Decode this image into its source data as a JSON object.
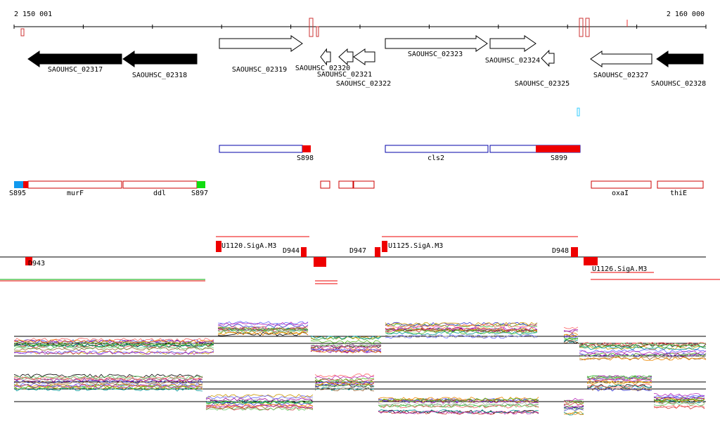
{
  "ruler": {
    "start_label": "2 150 001",
    "end_label": "2 160 000"
  },
  "genes": [
    {
      "label": "SAOUHSC_02317"
    },
    {
      "label": "SAOUHSC_02318"
    },
    {
      "label": "SAOUHSC_02319"
    },
    {
      "label": "SAOUHSC_02320"
    },
    {
      "label": "SAOUHSC_02321"
    },
    {
      "label": "SAOUHSC_02322"
    },
    {
      "label": "SAOUHSC_02323"
    },
    {
      "label": "SAOUHSC_02324"
    },
    {
      "label": "SAOUHSC_02325"
    },
    {
      "label": "SAOUHSC_02327"
    },
    {
      "label": "SAOUHSC_02328"
    }
  ],
  "features": [
    {
      "label": "S898"
    },
    {
      "label": "cls2"
    },
    {
      "label": "S899"
    },
    {
      "label": "S895"
    },
    {
      "label": "murF"
    },
    {
      "label": "ddl"
    },
    {
      "label": "S897"
    },
    {
      "label": "oxaI"
    },
    {
      "label": "thiE"
    }
  ],
  "promoters": [
    {
      "label": "D943"
    },
    {
      "label": "U1120.SigA.M3"
    },
    {
      "label": "D944"
    },
    {
      "label": "D947"
    },
    {
      "label": "U1125.SigA.M3"
    },
    {
      "label": "D948"
    },
    {
      "label": "U1126.SigA.M3"
    }
  ]
}
